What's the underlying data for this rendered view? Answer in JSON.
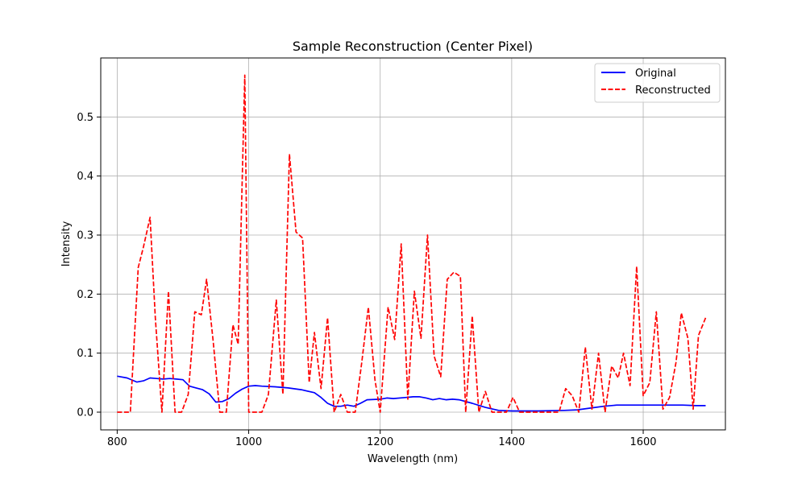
{
  "chart_data": {
    "type": "line",
    "title": "Sample Reconstruction (Center Pixel)",
    "xlabel": "Wavelength (nm)",
    "ylabel": "Intensity",
    "xlim": [
      775,
      1725
    ],
    "ylim": [
      -0.03,
      0.6
    ],
    "xticks": [
      800,
      1000,
      1200,
      1400,
      1600
    ],
    "yticks": [
      0.0,
      0.1,
      0.2,
      0.3,
      0.4,
      0.5
    ],
    "ytick_labels": [
      "0.0",
      "0.1",
      "0.2",
      "0.3",
      "0.4",
      "0.5"
    ],
    "grid": true,
    "legend_position": "top-right",
    "series": [
      {
        "name": "Original",
        "color": "#0000ff",
        "style": "solid",
        "x": [
          800,
          815,
          830,
          840,
          850,
          860,
          870,
          880,
          890,
          900,
          910,
          920,
          930,
          940,
          950,
          960,
          970,
          980,
          990,
          1000,
          1010,
          1020,
          1040,
          1060,
          1080,
          1100,
          1110,
          1120,
          1130,
          1140,
          1150,
          1160,
          1170,
          1180,
          1200,
          1210,
          1220,
          1240,
          1250,
          1260,
          1270,
          1280,
          1290,
          1300,
          1310,
          1320,
          1330,
          1340,
          1360,
          1380,
          1400,
          1420,
          1440,
          1480,
          1500,
          1520,
          1540,
          1560,
          1580,
          1600,
          1620,
          1640,
          1660,
          1680,
          1695
        ],
        "y": [
          0.061,
          0.058,
          0.051,
          0.053,
          0.058,
          0.057,
          0.056,
          0.057,
          0.056,
          0.055,
          0.044,
          0.041,
          0.038,
          0.031,
          0.017,
          0.018,
          0.023,
          0.032,
          0.039,
          0.044,
          0.045,
          0.044,
          0.043,
          0.041,
          0.038,
          0.033,
          0.025,
          0.015,
          0.01,
          0.01,
          0.012,
          0.01,
          0.015,
          0.021,
          0.022,
          0.024,
          0.023,
          0.025,
          0.026,
          0.026,
          0.024,
          0.021,
          0.023,
          0.021,
          0.022,
          0.021,
          0.018,
          0.015,
          0.008,
          0.003,
          0.002,
          0.002,
          0.002,
          0.003,
          0.004,
          0.007,
          0.01,
          0.012,
          0.012,
          0.012,
          0.012,
          0.012,
          0.012,
          0.011,
          0.011
        ]
      },
      {
        "name": "Reconstructed",
        "color": "#ff0000",
        "style": "dashed",
        "x": [
          800,
          810,
          820,
          832,
          840,
          850,
          858,
          868,
          878,
          888,
          898,
          908,
          918,
          928,
          936,
          946,
          956,
          966,
          976,
          984,
          994,
          1000,
          1010,
          1020,
          1030,
          1042,
          1052,
          1062,
          1072,
          1082,
          1092,
          1100,
          1110,
          1120,
          1130,
          1140,
          1150,
          1162,
          1172,
          1182,
          1192,
          1200,
          1212,
          1222,
          1232,
          1242,
          1252,
          1262,
          1272,
          1282,
          1292,
          1302,
          1312,
          1322,
          1330,
          1340,
          1350,
          1360,
          1370,
          1380,
          1392,
          1402,
          1412,
          1422,
          1432,
          1442,
          1452,
          1462,
          1472,
          1482,
          1492,
          1502,
          1512,
          1522,
          1532,
          1542,
          1552,
          1562,
          1570,
          1580,
          1590,
          1600,
          1610,
          1620,
          1630,
          1640,
          1650,
          1658,
          1668,
          1676,
          1684,
          1695
        ],
        "y": [
          0.0,
          0.0,
          0.0,
          0.245,
          0.28,
          0.33,
          0.16,
          0.0,
          0.205,
          0.0,
          0.0,
          0.03,
          0.17,
          0.165,
          0.225,
          0.12,
          0.0,
          0.0,
          0.148,
          0.115,
          0.571,
          0.0,
          0.0,
          0.0,
          0.03,
          0.19,
          0.03,
          0.437,
          0.305,
          0.295,
          0.05,
          0.135,
          0.04,
          0.16,
          0.0,
          0.03,
          0.0,
          0.0,
          0.085,
          0.178,
          0.055,
          0.0,
          0.178,
          0.123,
          0.285,
          0.022,
          0.205,
          0.125,
          0.3,
          0.095,
          0.06,
          0.225,
          0.237,
          0.23,
          0.0,
          0.163,
          0.0,
          0.035,
          0.0,
          0.0,
          0.0,
          0.025,
          0.0,
          0.0,
          0.0,
          0.0,
          0.0,
          0.0,
          0.0,
          0.04,
          0.028,
          0.0,
          0.11,
          0.005,
          0.1,
          0.0,
          0.078,
          0.058,
          0.1,
          0.045,
          0.247,
          0.028,
          0.05,
          0.17,
          0.005,
          0.025,
          0.085,
          0.168,
          0.125,
          0.005,
          0.13,
          0.16
        ]
      }
    ]
  }
}
